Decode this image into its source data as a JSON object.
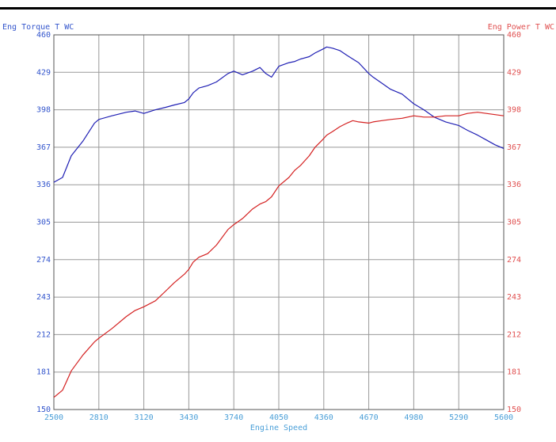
{
  "chart_data": {
    "type": "line",
    "title": "",
    "xlabel": "Engine Speed",
    "ylabel_left": "Eng Torque T WC",
    "ylabel_right": "Eng Power T WC",
    "xlim": [
      2500,
      5600
    ],
    "ylim": [
      150,
      460
    ],
    "x_ticks": [
      "2500",
      "2810",
      "3120",
      "3430",
      "3740",
      "4050",
      "4360",
      "4670",
      "4980",
      "5290",
      "5600"
    ],
    "y_ticks": [
      "150",
      "181",
      "212",
      "243",
      "274",
      "305",
      "336",
      "367",
      "398",
      "429",
      "460"
    ],
    "grid": true,
    "colors": {
      "left_axis": "#3355cc",
      "right_axis": "#e05050",
      "x_axis": "#4a9fd8",
      "grid": "#999999"
    },
    "series": [
      {
        "name": "Eng Torque T WC",
        "axis": "left",
        "color": "#1f1fb4",
        "x": [
          2500,
          2560,
          2620,
          2700,
          2780,
          2810,
          2900,
          3000,
          3060,
          3120,
          3200,
          3270,
          3330,
          3400,
          3430,
          3460,
          3500,
          3560,
          3620,
          3700,
          3740,
          3800,
          3870,
          3920,
          3960,
          4000,
          4050,
          4120,
          4160,
          4200,
          4260,
          4300,
          4350,
          4380,
          4420,
          4470,
          4520,
          4560,
          4600,
          4670,
          4700,
          4760,
          4820,
          4900,
          4980,
          5050,
          5120,
          5200,
          5290,
          5350,
          5420,
          5480,
          5540,
          5600
        ],
        "y": [
          338,
          342,
          360,
          372,
          387,
          390,
          393,
          396,
          397,
          395,
          398,
          400,
          402,
          404,
          407,
          412,
          416,
          418,
          421,
          428,
          430,
          427,
          430,
          433,
          428,
          425,
          434,
          437,
          438,
          440,
          442,
          445,
          448,
          450,
          449,
          447,
          443,
          440,
          437,
          428,
          425,
          420,
          415,
          411,
          403,
          398,
          392,
          388,
          385,
          381,
          377,
          373,
          369,
          366
        ]
      },
      {
        "name": "Eng Power T WC",
        "axis": "right",
        "color": "#d42020",
        "x": [
          2500,
          2560,
          2620,
          2700,
          2780,
          2810,
          2900,
          3000,
          3060,
          3120,
          3200,
          3270,
          3330,
          3400,
          3430,
          3460,
          3500,
          3560,
          3620,
          3700,
          3740,
          3800,
          3870,
          3920,
          3960,
          4000,
          4050,
          4120,
          4160,
          4200,
          4260,
          4300,
          4350,
          4380,
          4420,
          4470,
          4520,
          4560,
          4600,
          4670,
          4700,
          4760,
          4820,
          4900,
          4980,
          5050,
          5120,
          5200,
          5290,
          5350,
          5420,
          5480,
          5540,
          5600
        ],
        "y": [
          160,
          166,
          182,
          195,
          206,
          209,
          217,
          227,
          232,
          235,
          240,
          248,
          255,
          262,
          266,
          272,
          276,
          279,
          286,
          299,
          303,
          308,
          316,
          320,
          322,
          326,
          335,
          342,
          348,
          352,
          360,
          367,
          373,
          377,
          380,
          384,
          387,
          389,
          388,
          387,
          388,
          389,
          390,
          391,
          393,
          392,
          392,
          393,
          393,
          395,
          396,
          395,
          394,
          393
        ]
      }
    ]
  }
}
